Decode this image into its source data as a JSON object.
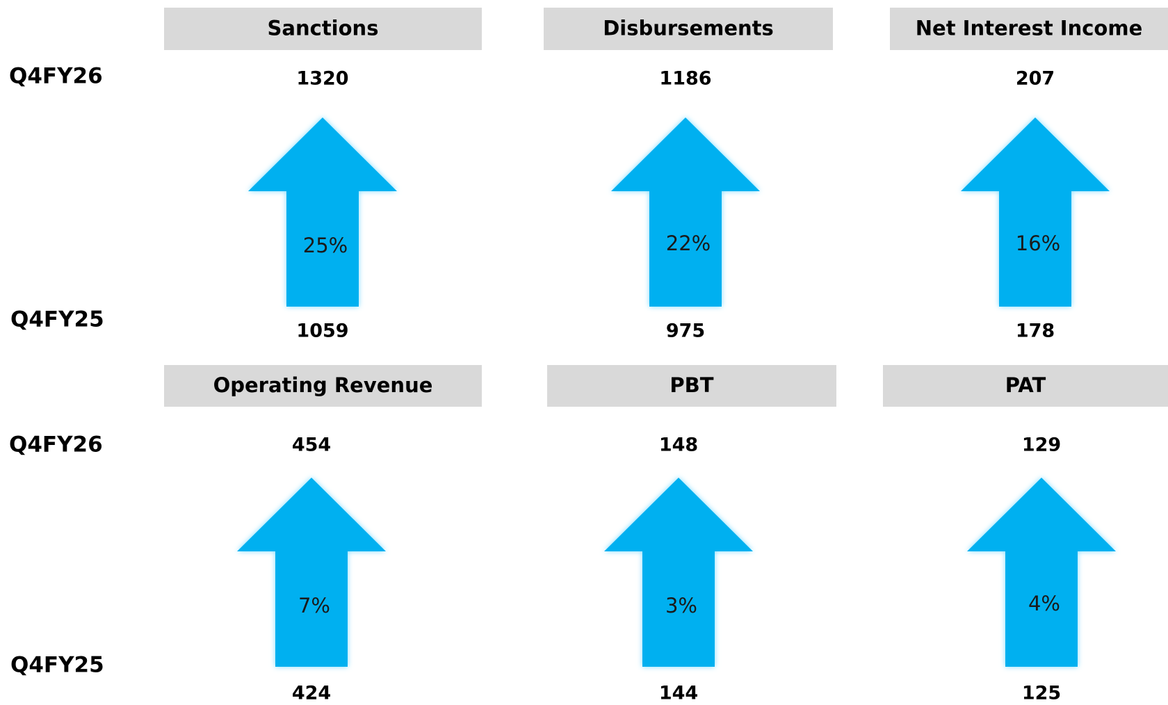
{
  "rows": [
    {
      "labels": {
        "current": "Q4FY26",
        "previous": "Q4FY25"
      },
      "panels": [
        {
          "title": "Sanctions",
          "current": 1320,
          "previous": 1059,
          "growth": "25%"
        },
        {
          "title": "Disbursements",
          "current": 1186,
          "previous": 975,
          "growth": "22%"
        },
        {
          "title": "Net Interest Income",
          "current": 207,
          "previous": 178,
          "growth": "16%"
        }
      ]
    },
    {
      "labels": {
        "current": "Q4FY26",
        "previous": "Q4FY25"
      },
      "panels": [
        {
          "title": "Operating Revenue",
          "current": 454,
          "previous": 424,
          "growth": "7%"
        },
        {
          "title": "PBT",
          "current": 148,
          "previous": 144,
          "growth": "3%"
        },
        {
          "title": "PAT",
          "current": 129,
          "previous": 125,
          "growth": "4%"
        }
      ]
    }
  ]
}
